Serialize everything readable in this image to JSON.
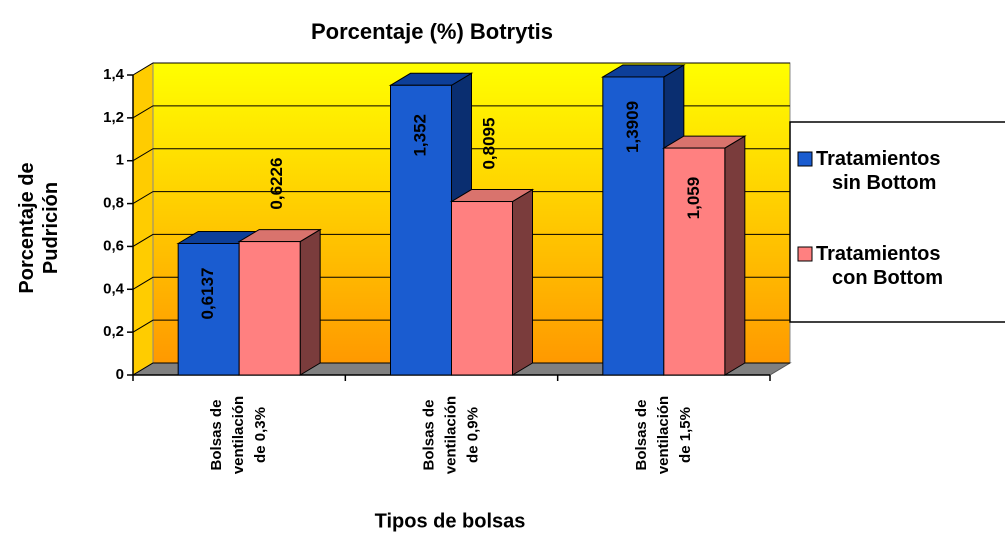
{
  "chart_data": {
    "type": "bar3d",
    "title": "Porcentaje (%) Botrytis",
    "xlabel": "Tipos de bolsas",
    "ylabel": "Porcentaje de Pudrición",
    "categories": [
      "Bolsas de ventilación de 0,3%",
      "Bolsas de ventilación de 0,9%",
      "Bolsas de ventilación de 1,5%"
    ],
    "series": [
      {
        "name": "Tratamientos sin Bottom",
        "color": "#1a5cd0",
        "values": [
          0.6137,
          1.352,
          1.3909
        ],
        "value_labels": [
          "0,6137",
          "1,352",
          "1,3909"
        ]
      },
      {
        "name": "Tratamientos con Bottom",
        "color": "#ff8080",
        "values": [
          0.6226,
          0.8095,
          1.059
        ],
        "value_labels": [
          "0,6226",
          "0,8095",
          "1,059"
        ]
      }
    ],
    "ylim": [
      0,
      1.4
    ],
    "yticks": [
      0,
      {
        "value": 0.2,
        "label": "0,2"
      },
      {
        "value": 0.4,
        "label": "0,4"
      },
      {
        "value": 0.6,
        "label": "0,6"
      },
      {
        "value": 0.8,
        "label": "0,8"
      },
      1,
      {
        "value": 1.2,
        "label": "1,2"
      },
      {
        "value": 1.4,
        "label": "1,4"
      }
    ],
    "grid": true,
    "legend": "right"
  }
}
